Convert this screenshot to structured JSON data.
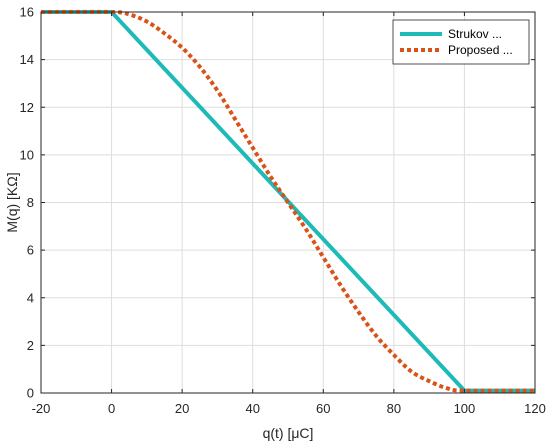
{
  "chart_data": {
    "type": "line",
    "xlabel": "q(t) [μC]",
    "ylabel": "M(q) [KΩ]",
    "xlim": [
      -20,
      120
    ],
    "ylim": [
      0,
      16
    ],
    "x_ticks": [
      -20,
      0,
      20,
      40,
      60,
      80,
      100,
      120
    ],
    "y_ticks": [
      0,
      2,
      4,
      6,
      8,
      10,
      12,
      14,
      16
    ],
    "grid": true,
    "legend_position": "top-right",
    "series": [
      {
        "name": "Strukov ...",
        "color": "#1ebab7",
        "style": "solid",
        "x": [
          -20,
          0,
          100,
          120
        ],
        "y": [
          16,
          16,
          0.1,
          0.1
        ]
      },
      {
        "name": "Proposed ...",
        "color": "#d95319",
        "style": "dotted",
        "x": [
          -20,
          0,
          5,
          10,
          15,
          20,
          25,
          30,
          35,
          40,
          45,
          50,
          55,
          60,
          65,
          70,
          75,
          80,
          85,
          90,
          95,
          100,
          120
        ],
        "y": [
          16,
          16,
          15.9,
          15.6,
          15.1,
          14.5,
          13.7,
          12.7,
          11.5,
          10.3,
          9.1,
          8.0,
          6.9,
          5.7,
          4.5,
          3.4,
          2.4,
          1.6,
          0.9,
          0.5,
          0.2,
          0.1,
          0.1
        ]
      }
    ]
  }
}
